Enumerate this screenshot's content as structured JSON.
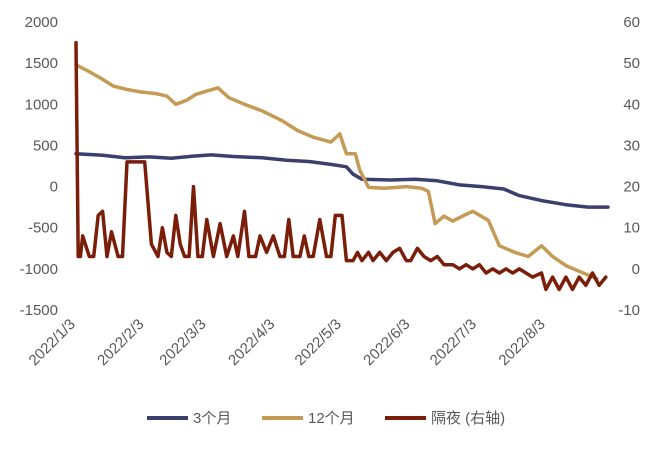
{
  "chart_data": {
    "type": "line",
    "title": "",
    "xlabel": "",
    "ylabel": "",
    "y2label": "",
    "grid": false,
    "legend_position": "bottom",
    "x_tick_labels": [
      "2022/1/3",
      "2022/2/3",
      "2022/3/3",
      "2022/4/3",
      "2022/5/3",
      "2022/6/3",
      "2022/7/3",
      "2022/8/3"
    ],
    "x_tick_dates": [
      "2022-01-03",
      "2022-02-03",
      "2022-03-03",
      "2022-04-03",
      "2022-05-03",
      "2022-06-03",
      "2022-07-03",
      "2022-08-03"
    ],
    "x_range": [
      "2022-01-03",
      "2022-08-31"
    ],
    "ylim_left": [
      -1500,
      2000
    ],
    "yticks_left": [
      "2000",
      "1500",
      "1000",
      "500",
      "0",
      "-500",
      "-1000",
      "-1500"
    ],
    "ylim_right": [
      -10,
      60
    ],
    "yticks_right": [
      "60",
      "50",
      "40",
      "30",
      "20",
      "10",
      "0",
      "-10"
    ],
    "colors": {
      "s3m": "#3B3F6E",
      "s12m": "#C49A55",
      "overnight": "#7A1E0A"
    },
    "series": [
      {
        "name": "3个月",
        "axis": "left",
        "points": [
          [
            "2022-01-03",
            400
          ],
          [
            "2022-01-15",
            380
          ],
          [
            "2022-01-25",
            350
          ],
          [
            "2022-02-05",
            360
          ],
          [
            "2022-02-15",
            345
          ],
          [
            "2022-02-25",
            370
          ],
          [
            "2022-03-05",
            385
          ],
          [
            "2022-03-15",
            365
          ],
          [
            "2022-03-28",
            350
          ],
          [
            "2022-04-08",
            320
          ],
          [
            "2022-04-18",
            305
          ],
          [
            "2022-04-28",
            270
          ],
          [
            "2022-05-05",
            240
          ],
          [
            "2022-05-08",
            150
          ],
          [
            "2022-05-12",
            90
          ],
          [
            "2022-05-25",
            80
          ],
          [
            "2022-06-05",
            90
          ],
          [
            "2022-06-15",
            70
          ],
          [
            "2022-06-25",
            20
          ],
          [
            "2022-07-05",
            0
          ],
          [
            "2022-07-15",
            -30
          ],
          [
            "2022-07-22",
            -110
          ],
          [
            "2022-08-01",
            -170
          ],
          [
            "2022-08-12",
            -220
          ],
          [
            "2022-08-22",
            -250
          ],
          [
            "2022-08-31",
            -250
          ]
        ]
      },
      {
        "name": "12个月",
        "axis": "left",
        "points": [
          [
            "2022-01-03",
            1480
          ],
          [
            "2022-01-08",
            1410
          ],
          [
            "2022-01-14",
            1320
          ],
          [
            "2022-01-20",
            1220
          ],
          [
            "2022-01-26",
            1180
          ],
          [
            "2022-02-01",
            1150
          ],
          [
            "2022-02-08",
            1130
          ],
          [
            "2022-02-13",
            1100
          ],
          [
            "2022-02-17",
            1000
          ],
          [
            "2022-02-22",
            1050
          ],
          [
            "2022-02-26",
            1120
          ],
          [
            "2022-03-03",
            1160
          ],
          [
            "2022-03-08",
            1200
          ],
          [
            "2022-03-13",
            1080
          ],
          [
            "2022-03-20",
            1000
          ],
          [
            "2022-03-28",
            920
          ],
          [
            "2022-04-06",
            800
          ],
          [
            "2022-04-13",
            680
          ],
          [
            "2022-04-20",
            600
          ],
          [
            "2022-04-28",
            540
          ],
          [
            "2022-05-02",
            640
          ],
          [
            "2022-05-05",
            400
          ],
          [
            "2022-05-09",
            400
          ],
          [
            "2022-05-11",
            200
          ],
          [
            "2022-05-15",
            -10
          ],
          [
            "2022-05-22",
            -20
          ],
          [
            "2022-06-01",
            0
          ],
          [
            "2022-06-08",
            -20
          ],
          [
            "2022-06-11",
            -60
          ],
          [
            "2022-06-14",
            -450
          ],
          [
            "2022-06-18",
            -360
          ],
          [
            "2022-06-22",
            -420
          ],
          [
            "2022-06-27",
            -350
          ],
          [
            "2022-07-01",
            -300
          ],
          [
            "2022-07-08",
            -410
          ],
          [
            "2022-07-13",
            -720
          ],
          [
            "2022-07-20",
            -800
          ],
          [
            "2022-07-26",
            -850
          ],
          [
            "2022-08-01",
            -720
          ],
          [
            "2022-08-06",
            -850
          ],
          [
            "2022-08-12",
            -960
          ],
          [
            "2022-08-18",
            -1030
          ],
          [
            "2022-08-26",
            -1120
          ]
        ]
      },
      {
        "name": "隔夜 (右轴)",
        "axis": "right",
        "points": [
          [
            "2022-01-03",
            55
          ],
          [
            "2022-01-04",
            3
          ],
          [
            "2022-01-05",
            3
          ],
          [
            "2022-01-06",
            8
          ],
          [
            "2022-01-09",
            3
          ],
          [
            "2022-01-11",
            3
          ],
          [
            "2022-01-13",
            13
          ],
          [
            "2022-01-15",
            14
          ],
          [
            "2022-01-17",
            3
          ],
          [
            "2022-01-19",
            9
          ],
          [
            "2022-01-22",
            3
          ],
          [
            "2022-01-24",
            3
          ],
          [
            "2022-01-26",
            26
          ],
          [
            "2022-02-01",
            26
          ],
          [
            "2022-02-03",
            26
          ],
          [
            "2022-02-06",
            6
          ],
          [
            "2022-02-09",
            3
          ],
          [
            "2022-02-11",
            10
          ],
          [
            "2022-02-13",
            4
          ],
          [
            "2022-02-15",
            3
          ],
          [
            "2022-02-17",
            13
          ],
          [
            "2022-02-19",
            6
          ],
          [
            "2022-02-21",
            3
          ],
          [
            "2022-02-23",
            3
          ],
          [
            "2022-02-25",
            20
          ],
          [
            "2022-02-27",
            3
          ],
          [
            "2022-03-01",
            3
          ],
          [
            "2022-03-03",
            12
          ],
          [
            "2022-03-06",
            3
          ],
          [
            "2022-03-09",
            11
          ],
          [
            "2022-03-12",
            3
          ],
          [
            "2022-03-15",
            8
          ],
          [
            "2022-03-17",
            3
          ],
          [
            "2022-03-20",
            14
          ],
          [
            "2022-03-22",
            3
          ],
          [
            "2022-03-25",
            3
          ],
          [
            "2022-03-27",
            8
          ],
          [
            "2022-03-30",
            4
          ],
          [
            "2022-04-02",
            8
          ],
          [
            "2022-04-05",
            3
          ],
          [
            "2022-04-07",
            3
          ],
          [
            "2022-04-09",
            12
          ],
          [
            "2022-04-11",
            3
          ],
          [
            "2022-04-14",
            3
          ],
          [
            "2022-04-16",
            8
          ],
          [
            "2022-04-18",
            3
          ],
          [
            "2022-04-20",
            3
          ],
          [
            "2022-04-23",
            12
          ],
          [
            "2022-04-26",
            3
          ],
          [
            "2022-04-28",
            3
          ],
          [
            "2022-04-30",
            13
          ],
          [
            "2022-05-03",
            13
          ],
          [
            "2022-05-05",
            2
          ],
          [
            "2022-05-08",
            2
          ],
          [
            "2022-05-10",
            4
          ],
          [
            "2022-05-12",
            2
          ],
          [
            "2022-05-15",
            4
          ],
          [
            "2022-05-17",
            2
          ],
          [
            "2022-05-20",
            4
          ],
          [
            "2022-05-23",
            2
          ],
          [
            "2022-05-26",
            4
          ],
          [
            "2022-05-29",
            5
          ],
          [
            "2022-06-01",
            2
          ],
          [
            "2022-06-03",
            2
          ],
          [
            "2022-06-06",
            5
          ],
          [
            "2022-06-09",
            3
          ],
          [
            "2022-06-12",
            2
          ],
          [
            "2022-06-15",
            3
          ],
          [
            "2022-06-18",
            1
          ],
          [
            "2022-06-22",
            1
          ],
          [
            "2022-06-25",
            0
          ],
          [
            "2022-06-28",
            1
          ],
          [
            "2022-07-01",
            0
          ],
          [
            "2022-07-04",
            1
          ],
          [
            "2022-07-07",
            -1
          ],
          [
            "2022-07-10",
            0
          ],
          [
            "2022-07-13",
            -1
          ],
          [
            "2022-07-16",
            0
          ],
          [
            "2022-07-19",
            -1
          ],
          [
            "2022-07-22",
            0
          ],
          [
            "2022-07-25",
            -1
          ],
          [
            "2022-07-28",
            -2
          ],
          [
            "2022-08-01",
            -1
          ],
          [
            "2022-08-03",
            -5
          ],
          [
            "2022-08-06",
            -2
          ],
          [
            "2022-08-09",
            -5
          ],
          [
            "2022-08-12",
            -2
          ],
          [
            "2022-08-15",
            -5
          ],
          [
            "2022-08-18",
            -2
          ],
          [
            "2022-08-21",
            -4
          ],
          [
            "2022-08-24",
            -1
          ],
          [
            "2022-08-27",
            -4
          ],
          [
            "2022-08-30",
            -2
          ]
        ]
      }
    ]
  }
}
